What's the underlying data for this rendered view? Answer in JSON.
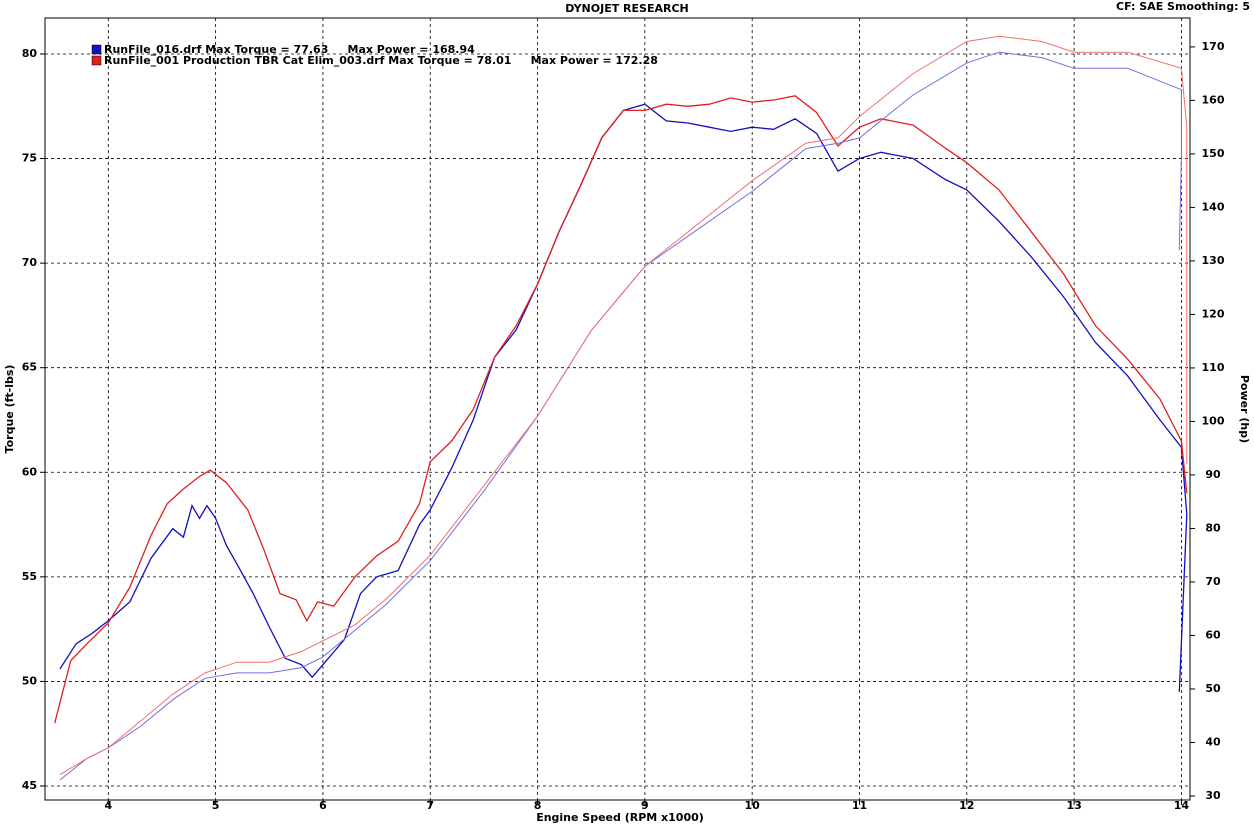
{
  "chart_data": {
    "type": "line",
    "title": "DYNOJET RESEARCH",
    "subtitle": "CF: SAE  Smoothing: 5",
    "x_label": "Engine Speed (RPM x1000)",
    "y_label": "Torque (ft-lbs)",
    "y2_label": "Power (hp)",
    "legend": [
      {
        "text": "RunFile_016.drf Max Torque = 77.63     Max Power = 168.94",
        "color": "#1010c0"
      },
      {
        "text": "RunFile_001 Production TBR Cat Elim_003.drf Max Torque = 78.01     Max Power = 172.28",
        "color": "#e02020"
      }
    ],
    "xlim": [
      3.41,
      14.08
    ],
    "xticks": [
      4,
      5,
      6,
      7,
      8,
      9,
      10,
      11,
      12,
      13,
      14
    ],
    "ylim": [
      44.33,
      81.72
    ],
    "yticks": [
      45,
      50,
      55,
      60,
      65,
      70,
      75,
      80
    ],
    "y2lim": [
      29.25,
      175.4
    ],
    "y2ticks": [
      30,
      40,
      50,
      60,
      70,
      80,
      90,
      100,
      110,
      120,
      130,
      140,
      150,
      160,
      170
    ],
    "grid": true,
    "series": [
      {
        "color": "#1010c0",
        "axis": "y",
        "x": [
          3.55,
          3.7,
          3.85,
          4.0,
          4.2,
          4.4,
          4.6,
          4.7,
          4.78,
          4.85,
          4.92,
          5.0,
          5.1,
          5.2,
          5.35,
          5.5,
          5.65,
          5.8,
          5.9,
          6.0,
          6.2,
          6.35,
          6.5,
          6.7,
          6.9,
          7.0,
          7.2,
          7.4,
          7.6,
          7.8,
          8.0,
          8.2,
          8.4,
          8.6,
          8.8,
          9.0,
          9.2,
          9.4,
          9.6,
          9.8,
          10.0,
          10.2,
          10.4,
          10.6,
          10.8,
          11.0,
          11.2,
          11.5,
          11.8,
          12.0,
          12.3,
          12.6,
          12.9,
          13.2,
          13.5,
          13.8,
          14.0,
          14.05,
          13.98
        ],
        "values": [
          50.6,
          51.8,
          52.3,
          52.9,
          53.8,
          55.9,
          57.3,
          56.9,
          58.4,
          57.8,
          58.4,
          57.8,
          56.5,
          55.6,
          54.2,
          52.6,
          51.1,
          50.8,
          50.2,
          50.8,
          52.0,
          54.2,
          55.0,
          55.3,
          57.5,
          58.2,
          60.2,
          62.5,
          65.5,
          66.8,
          69.0,
          71.5,
          73.7,
          76.0,
          77.3,
          77.6,
          76.8,
          76.7,
          76.5,
          76.3,
          76.5,
          76.4,
          76.9,
          76.2,
          74.4,
          75.0,
          75.3,
          75.0,
          74.0,
          73.5,
          72.0,
          70.3,
          68.4,
          66.2,
          64.6,
          62.5,
          61.2,
          58.0,
          49.5
        ]
      },
      {
        "color": "#e02020",
        "axis": "y",
        "x": [
          3.5,
          3.65,
          3.8,
          4.0,
          4.2,
          4.4,
          4.55,
          4.7,
          4.85,
          4.95,
          5.1,
          5.3,
          5.45,
          5.6,
          5.75,
          5.85,
          5.95,
          6.1,
          6.3,
          6.5,
          6.7,
          6.9,
          7.0,
          7.2,
          7.4,
          7.6,
          7.8,
          8.0,
          8.2,
          8.4,
          8.6,
          8.8,
          9.0,
          9.2,
          9.4,
          9.6,
          9.8,
          10.0,
          10.2,
          10.4,
          10.6,
          10.8,
          11.0,
          11.2,
          11.5,
          11.8,
          12.0,
          12.3,
          12.6,
          12.9,
          13.2,
          13.5,
          13.8,
          14.0,
          14.05
        ],
        "values": [
          48.0,
          51.0,
          51.8,
          52.8,
          54.5,
          57.0,
          58.5,
          59.2,
          59.8,
          60.1,
          59.5,
          58.2,
          56.3,
          54.2,
          53.9,
          52.9,
          53.8,
          53.6,
          55.0,
          56.0,
          56.7,
          58.5,
          60.5,
          61.5,
          63.0,
          65.5,
          67.0,
          69.0,
          71.5,
          73.7,
          76.0,
          77.3,
          77.3,
          77.6,
          77.5,
          77.6,
          77.9,
          77.7,
          77.8,
          78.0,
          77.2,
          75.6,
          76.5,
          76.9,
          76.6,
          75.5,
          74.8,
          73.5,
          71.5,
          69.5,
          67.0,
          65.4,
          63.5,
          61.5,
          59.0
        ]
      },
      {
        "color": "#7070e0",
        "axis": "y2",
        "x": [
          3.55,
          3.8,
          4.0,
          4.3,
          4.6,
          4.9,
          5.2,
          5.5,
          5.8,
          6.0,
          6.3,
          6.6,
          7.0,
          7.5,
          8.0,
          8.5,
          9.0,
          9.5,
          10.0,
          10.5,
          10.8,
          11.0,
          11.5,
          12.0,
          12.3,
          12.7,
          13.0,
          13.5,
          14.0,
          14.0,
          13.98
        ],
        "values": [
          33,
          37,
          39,
          43,
          48,
          52,
          53,
          53,
          54,
          56,
          61,
          66,
          74,
          87,
          101,
          117,
          129,
          136,
          143,
          151,
          152,
          153,
          161,
          167,
          169,
          168,
          166,
          166,
          162,
          150,
          132
        ]
      },
      {
        "color": "#f07070",
        "axis": "y2",
        "x": [
          3.55,
          3.8,
          4.0,
          4.3,
          4.6,
          4.9,
          5.2,
          5.5,
          5.8,
          6.0,
          6.3,
          6.6,
          7.0,
          7.5,
          8.0,
          8.5,
          9.0,
          9.5,
          10.0,
          10.5,
          10.8,
          11.0,
          11.5,
          12.0,
          12.3,
          12.7,
          13.0,
          13.5,
          14.0,
          14.05,
          14.05
        ],
        "values": [
          34,
          37,
          39,
          44,
          49,
          53,
          55,
          55,
          57,
          59,
          62,
          67,
          75,
          88,
          101,
          117,
          129,
          137,
          145,
          152,
          153,
          157,
          165,
          171,
          172,
          171,
          169,
          169,
          166,
          155,
          92
        ]
      }
    ]
  }
}
